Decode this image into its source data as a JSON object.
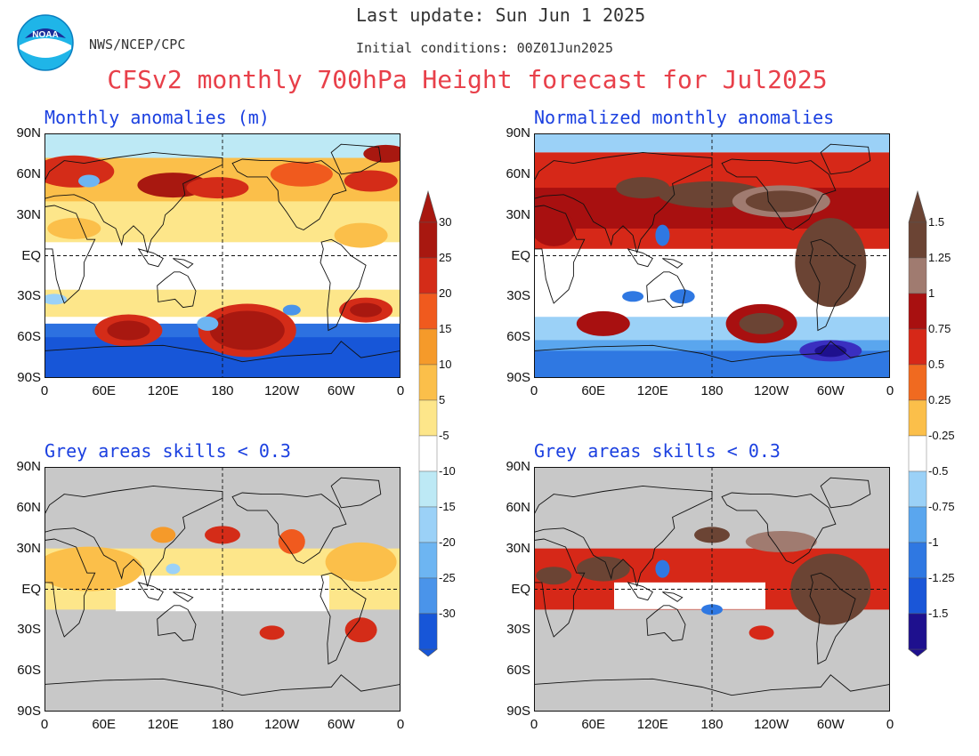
{
  "header": {
    "last_update": "Last update: Sun Jun 1 2025",
    "initial_conditions": "Initial conditions: 00Z01Jun2025",
    "agency": "NWS/NCEP/CPC",
    "logo_text": "NOAA",
    "title": "CFSv2 monthly 700hPa Height forecast for Jul2025"
  },
  "panels": {
    "top_left": {
      "title": "Monthly anomalies (m)"
    },
    "top_right": {
      "title": "Normalized monthly anomalies"
    },
    "bottom_left": {
      "title": "Grey areas skills < 0.3"
    },
    "bottom_right": {
      "title": "Grey areas skills < 0.3"
    }
  },
  "lat_labels": [
    "90N",
    "60N",
    "30N",
    "EQ",
    "30S",
    "60S",
    "90S"
  ],
  "lon_labels": [
    "0",
    "60E",
    "120E",
    "180",
    "120W",
    "60W",
    "0"
  ],
  "colorbar_left": {
    "pos_labels": [
      "30",
      "25",
      "20",
      "15",
      "10",
      "5"
    ],
    "neg_labels": [
      "-5",
      "-10",
      "-15",
      "-20",
      "-25",
      "-30"
    ]
  },
  "colorbar_right": {
    "pos_labels": [
      "1.5",
      "1.25",
      "1",
      "0.75",
      "0.5",
      "0.25"
    ],
    "neg_labels": [
      "-0.25",
      "-0.5",
      "-0.75",
      "-1",
      "-1.25",
      "-1.5"
    ]
  },
  "colors": {
    "title_red": "#e8404a",
    "panel_blue": "#1b40e0",
    "skill_grey": "#c8c8c8",
    "pos_scale": [
      "#fde68a",
      "#fbbf4a",
      "#f59a2a",
      "#f05a1e",
      "#d42c18",
      "#a81810"
    ],
    "neg_scale": [
      "#bde9f5",
      "#9bd1f7",
      "#6db5f2",
      "#4a94ea",
      "#2d71e0",
      "#1756d8"
    ],
    "norm_pos_scale": [
      "#fbbf4a",
      "#f06a20",
      "#d62818",
      "#a81010",
      "#a07b70",
      "#6b4434"
    ],
    "norm_neg_scale": [
      "#9bd1f7",
      "#5aa6ee",
      "#2f78e2",
      "#1a56d8",
      "#3a2fc0",
      "#1e108e"
    ]
  }
}
